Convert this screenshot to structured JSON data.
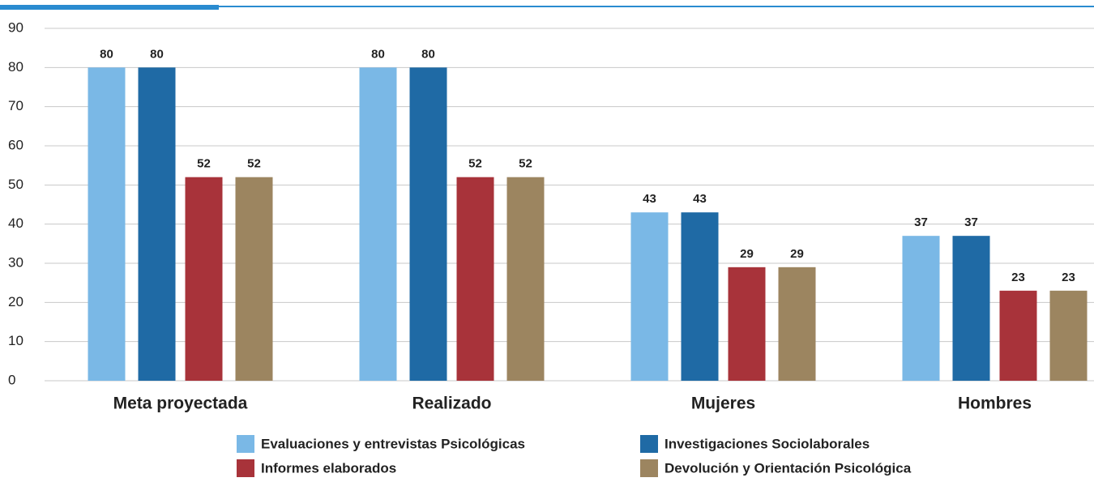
{
  "chart_data": {
    "type": "bar",
    "categories": [
      "Meta proyectada",
      "Realizado",
      "Mujeres",
      "Hombres"
    ],
    "series": [
      {
        "name": "Evaluaciones y entrevistas Psicológicas",
        "color": "#7ab8e6",
        "values": [
          80,
          80,
          43,
          37
        ]
      },
      {
        "name": "Investigaciones Sociolaborales",
        "color": "#1f6aa5",
        "values": [
          80,
          80,
          43,
          37
        ]
      },
      {
        "name": "Informes elaborados",
        "color": "#a8333a",
        "values": [
          52,
          52,
          29,
          23
        ]
      },
      {
        "name": "Devolución y Orientación Psicológica",
        "color": "#9c8560",
        "values": [
          52,
          52,
          29,
          23
        ]
      }
    ],
    "ylim": [
      0,
      90
    ],
    "yticks": [
      0,
      10,
      20,
      30,
      40,
      50,
      60,
      70,
      80,
      90
    ],
    "grid": true,
    "legend": "bottom"
  }
}
